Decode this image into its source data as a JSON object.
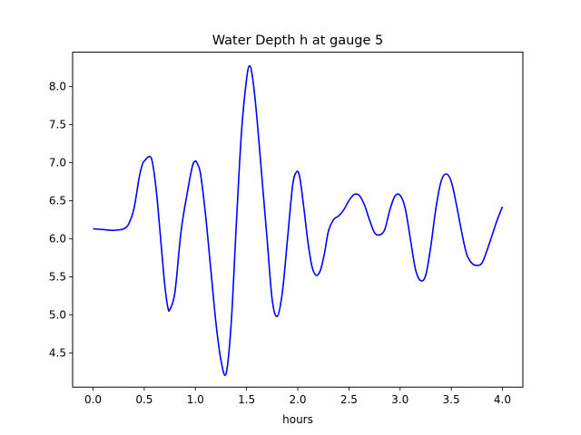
{
  "chart_data": {
    "type": "line",
    "title": "Water Depth h at gauge 5",
    "xlabel": "hours",
    "ylabel": "",
    "xlim": [
      -0.2,
      4.2
    ],
    "ylim": [
      4.05,
      8.45
    ],
    "xticks": [
      0.0,
      0.5,
      1.0,
      1.5,
      2.0,
      2.5,
      3.0,
      3.5,
      4.0
    ],
    "xtick_labels": [
      "0.0",
      "0.5",
      "1.0",
      "1.5",
      "2.0",
      "2.5",
      "3.0",
      "3.5",
      "4.0"
    ],
    "yticks": [
      4.5,
      5.0,
      5.5,
      6.0,
      6.5,
      7.0,
      7.5,
      8.0
    ],
    "ytick_labels": [
      "4.5",
      "5.0",
      "5.5",
      "6.0",
      "6.5",
      "7.0",
      "7.5",
      "8.0"
    ],
    "grid": false,
    "series": [
      {
        "color": "#0000ff",
        "x": [
          0.0,
          0.1,
          0.2,
          0.3,
          0.35,
          0.4,
          0.45,
          0.48,
          0.5,
          0.55,
          0.58,
          0.62,
          0.66,
          0.7,
          0.73,
          0.75,
          0.8,
          0.86,
          0.92,
          0.97,
          1.0,
          1.02,
          1.05,
          1.1,
          1.15,
          1.2,
          1.25,
          1.3,
          1.35,
          1.4,
          1.45,
          1.5,
          1.53,
          1.56,
          1.6,
          1.65,
          1.7,
          1.75,
          1.8,
          1.85,
          1.9,
          1.95,
          1.99,
          2.02,
          2.06,
          2.1,
          2.14,
          2.18,
          2.22,
          2.26,
          2.3,
          2.35,
          2.4,
          2.45,
          2.5,
          2.55,
          2.6,
          2.65,
          2.7,
          2.75,
          2.8,
          2.85,
          2.9,
          2.95,
          3.0,
          3.05,
          3.1,
          3.15,
          3.2,
          3.25,
          3.3,
          3.35,
          3.4,
          3.45,
          3.5,
          3.55,
          3.6,
          3.65,
          3.7,
          3.75,
          3.8,
          3.85,
          3.9,
          3.95,
          4.0
        ],
        "y": [
          6.13,
          6.12,
          6.11,
          6.13,
          6.2,
          6.4,
          6.8,
          6.97,
          7.02,
          7.08,
          7.0,
          6.6,
          6.0,
          5.4,
          5.1,
          5.07,
          5.3,
          6.1,
          6.6,
          6.95,
          7.02,
          6.98,
          6.85,
          6.3,
          5.6,
          4.9,
          4.4,
          4.23,
          4.9,
          6.2,
          7.4,
          8.1,
          8.27,
          8.1,
          7.6,
          6.8,
          6.0,
          5.2,
          4.98,
          5.3,
          6.0,
          6.7,
          6.88,
          6.8,
          6.4,
          5.95,
          5.63,
          5.52,
          5.58,
          5.8,
          6.1,
          6.25,
          6.3,
          6.38,
          6.5,
          6.58,
          6.57,
          6.45,
          6.25,
          6.08,
          6.05,
          6.12,
          6.38,
          6.56,
          6.57,
          6.4,
          6.0,
          5.6,
          5.45,
          5.52,
          5.9,
          6.4,
          6.75,
          6.85,
          6.75,
          6.45,
          6.1,
          5.8,
          5.68,
          5.65,
          5.68,
          5.85,
          6.05,
          6.25,
          6.42
        ]
      }
    ]
  }
}
